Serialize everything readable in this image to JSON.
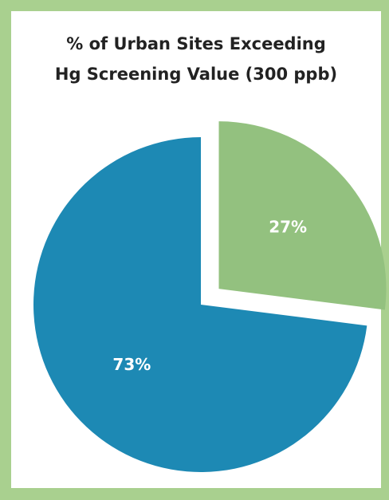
{
  "chart_data": {
    "type": "pie",
    "title": [
      "% of Urban Sites Exceeding",
      "Hg Screening Value (300 ppb)"
    ],
    "categories": [
      null,
      null
    ],
    "values": [
      27,
      73
    ],
    "value_labels": [
      "27%",
      "73%"
    ],
    "colors": [
      "#93c17f",
      "#1d89b4"
    ],
    "explode": [
      true,
      false
    ]
  }
}
